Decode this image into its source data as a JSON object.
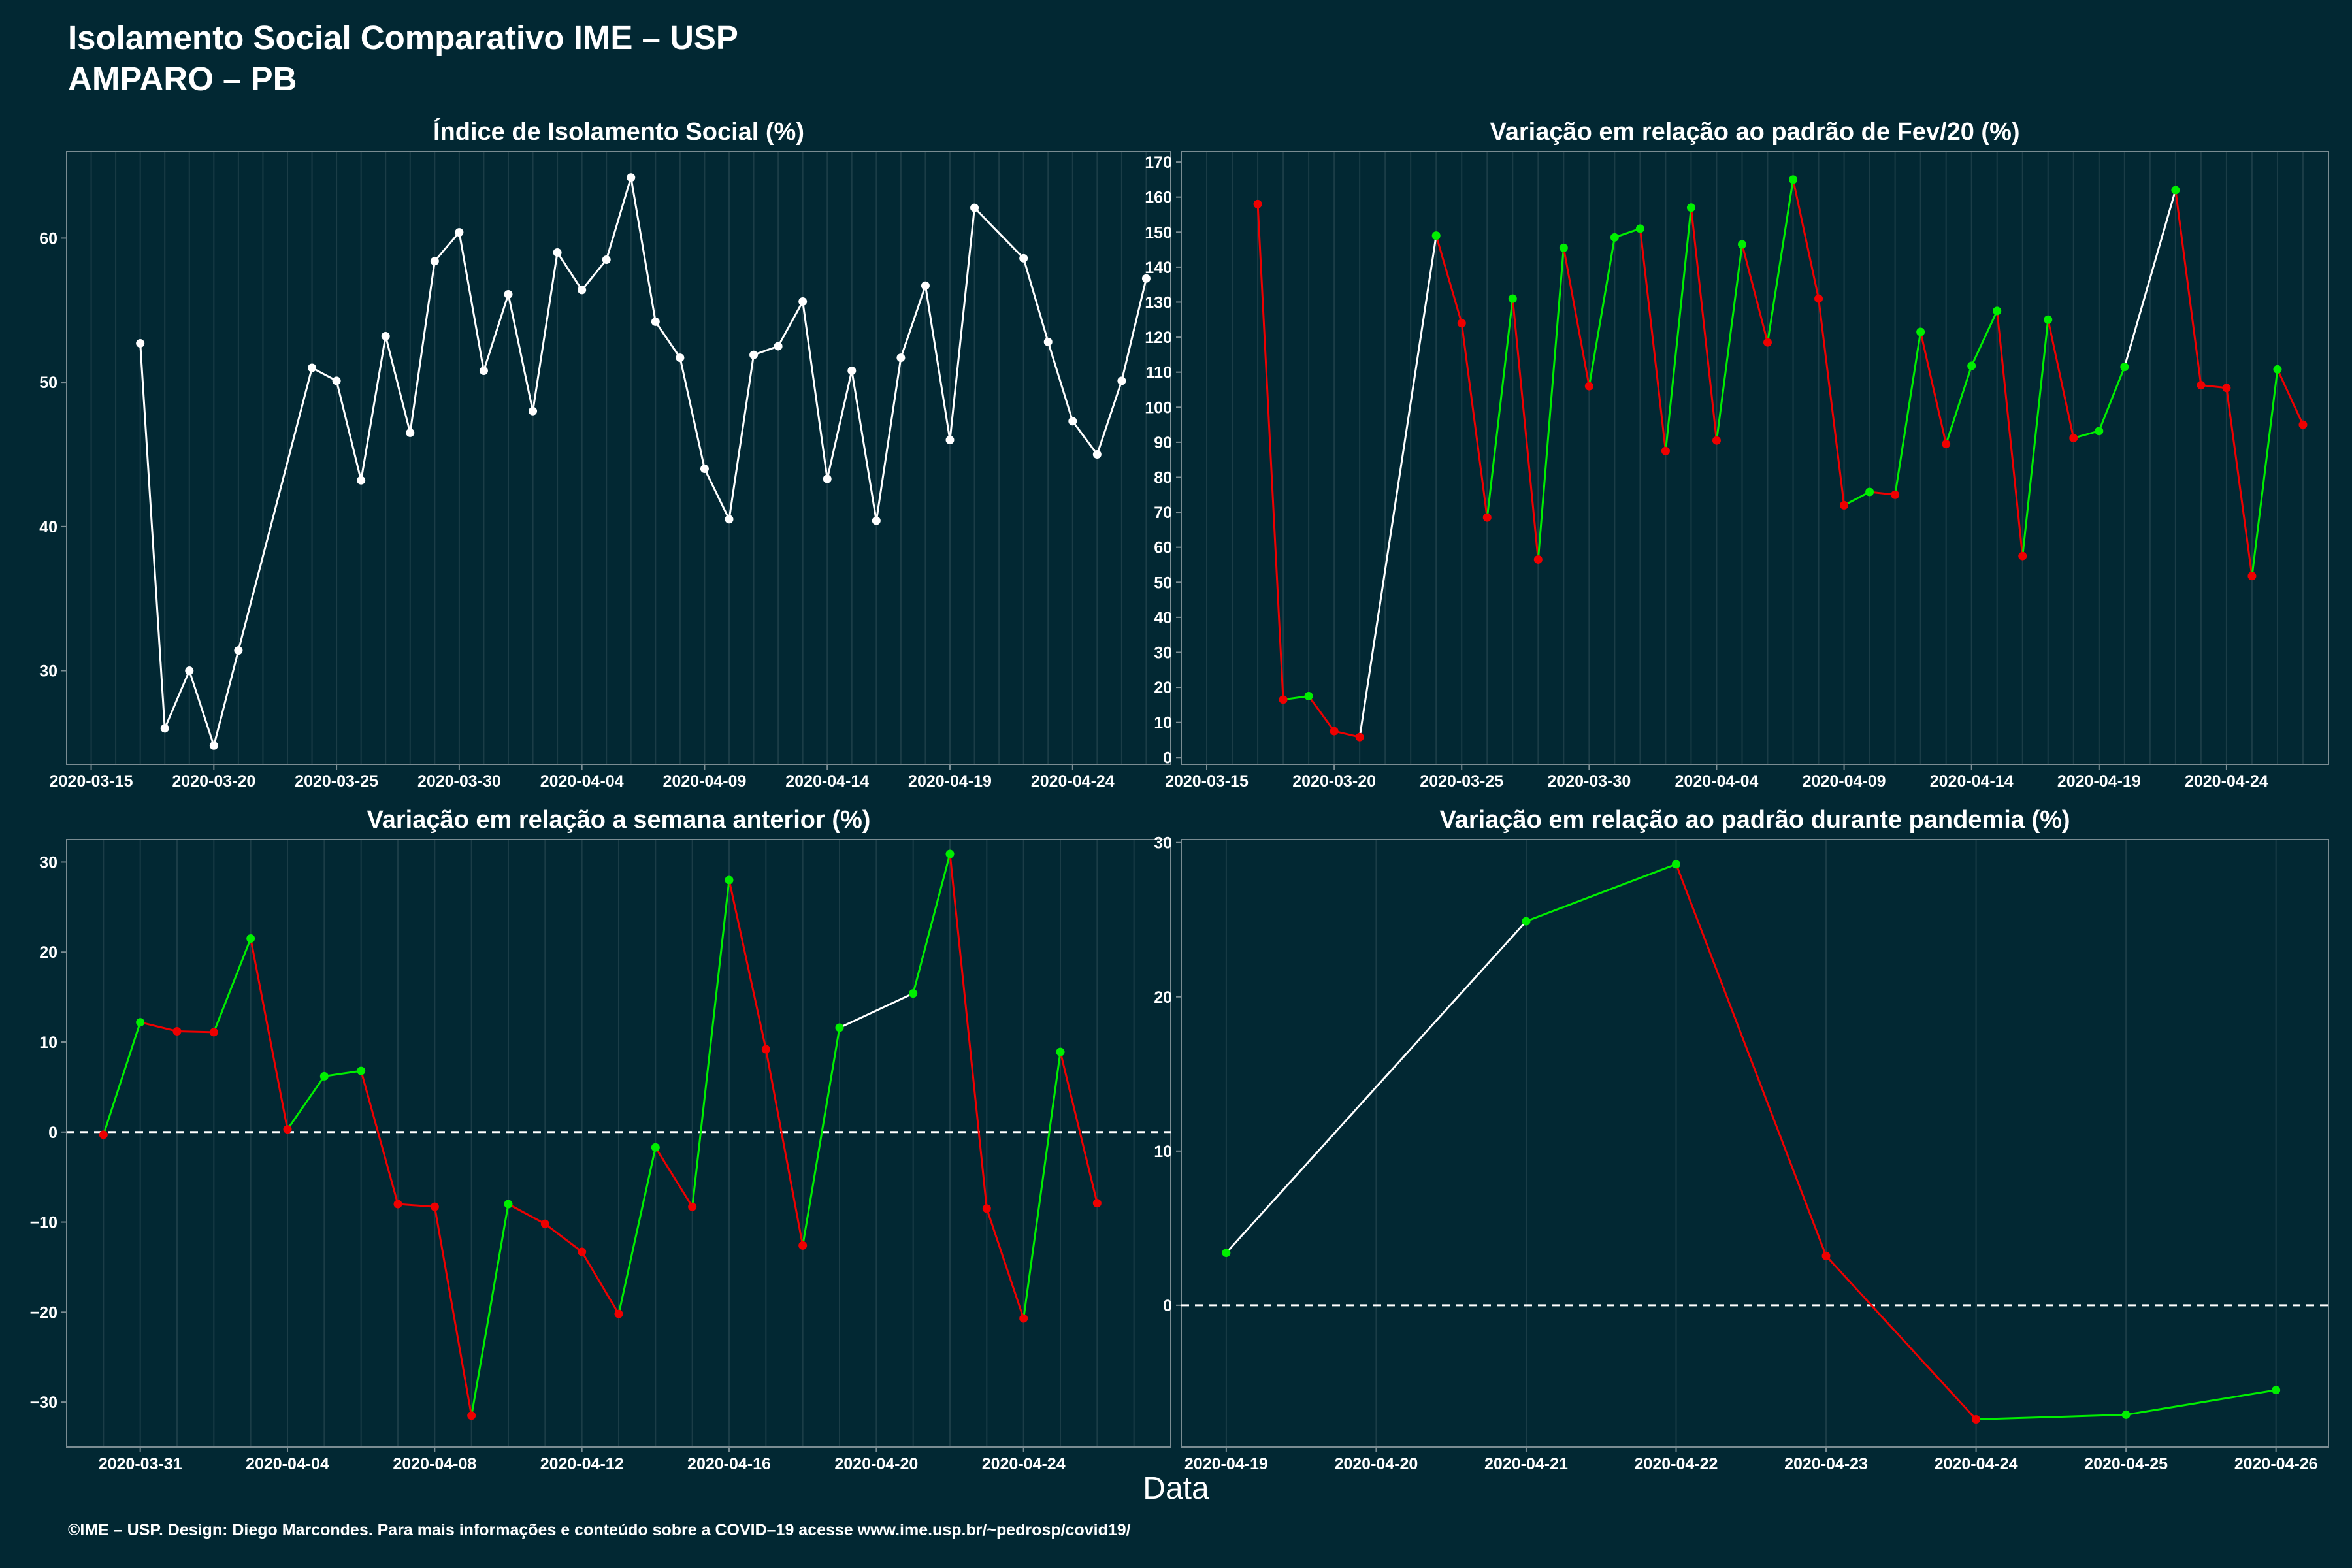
{
  "header": {
    "title": "Isolamento Social Comparativo IME – USP",
    "subtitle": "AMPARO – PB"
  },
  "x_axis_label": "Data",
  "caption": "©IME – USP. Design: Diego Marcondes. Para mais informações e conteúdo sobre a COVID–19 acesse www.ime.usp.br/~pedrosp/covid19/",
  "colors": {
    "background": "#022833",
    "panel_border": "#7a8c92",
    "grid": "#1b3d47",
    "neutral_line": "#ffffff",
    "increase": "#00ee00",
    "decrease": "#ee0000"
  },
  "chart_data": [
    {
      "id": "panel1",
      "type": "line",
      "title": "Índice de Isolamento Social (%)",
      "x_type": "date",
      "xlim": [
        "2020-03-14",
        "2020-04-28"
      ],
      "x_ticks": [
        "2020-03-15",
        "2020-03-20",
        "2020-03-25",
        "2020-03-30",
        "2020-04-04",
        "2020-04-09",
        "2020-04-14",
        "2020-04-19",
        "2020-04-24"
      ],
      "ylim": [
        23.5,
        66
      ],
      "y_ticks": [
        30,
        40,
        50,
        60
      ],
      "y_tick_labels": [
        "30",
        "40",
        "50",
        "60"
      ],
      "color_mode": "white",
      "points": [
        {
          "x": "2020-03-17",
          "y": 52.7
        },
        {
          "x": "2020-03-18",
          "y": 26.0
        },
        {
          "x": "2020-03-19",
          "y": 30.0
        },
        {
          "x": "2020-03-20",
          "y": 24.8
        },
        {
          "x": "2020-03-21",
          "y": 31.4
        },
        {
          "x": "2020-03-24",
          "y": 51.0
        },
        {
          "x": "2020-03-25",
          "y": 50.1
        },
        {
          "x": "2020-03-26",
          "y": 43.2
        },
        {
          "x": "2020-03-27",
          "y": 53.2
        },
        {
          "x": "2020-03-28",
          "y": 46.5
        },
        {
          "x": "2020-03-29",
          "y": 58.4
        },
        {
          "x": "2020-03-30",
          "y": 60.4
        },
        {
          "x": "2020-03-31",
          "y": 50.8
        },
        {
          "x": "2020-04-01",
          "y": 56.1
        },
        {
          "x": "2020-04-02",
          "y": 48.0
        },
        {
          "x": "2020-04-03",
          "y": 59.0
        },
        {
          "x": "2020-04-04",
          "y": 56.4
        },
        {
          "x": "2020-04-05",
          "y": 58.5
        },
        {
          "x": "2020-04-06",
          "y": 64.2
        },
        {
          "x": "2020-04-07",
          "y": 54.2
        },
        {
          "x": "2020-04-08",
          "y": 51.7
        },
        {
          "x": "2020-04-09",
          "y": 44.0
        },
        {
          "x": "2020-04-10",
          "y": 40.5
        },
        {
          "x": "2020-04-11",
          "y": 51.9
        },
        {
          "x": "2020-04-12",
          "y": 52.5
        },
        {
          "x": "2020-04-13",
          "y": 55.6
        },
        {
          "x": "2020-04-14",
          "y": 43.3
        },
        {
          "x": "2020-04-15",
          "y": 50.8
        },
        {
          "x": "2020-04-16",
          "y": 40.4
        },
        {
          "x": "2020-04-17",
          "y": 51.7
        },
        {
          "x": "2020-04-18",
          "y": 56.7
        },
        {
          "x": "2020-04-19",
          "y": 46.0
        },
        {
          "x": "2020-04-20",
          "y": 62.1
        },
        {
          "x": "2020-04-22",
          "y": 58.6
        },
        {
          "x": "2020-04-23",
          "y": 52.8
        },
        {
          "x": "2020-04-24",
          "y": 47.3
        },
        {
          "x": "2020-04-25",
          "y": 45.0
        },
        {
          "x": "2020-04-26",
          "y": 50.1
        },
        {
          "x": "2020-04-27",
          "y": 57.2
        }
      ]
    },
    {
      "id": "panel2",
      "type": "line",
      "title": "Variação em relação ao padrão de Fev/20 (%)",
      "x_type": "date",
      "xlim": [
        "2020-03-14",
        "2020-04-28"
      ],
      "x_ticks": [
        "2020-03-15",
        "2020-03-20",
        "2020-03-25",
        "2020-03-30",
        "2020-04-04",
        "2020-04-09",
        "2020-04-14",
        "2020-04-19",
        "2020-04-24"
      ],
      "ylim": [
        -2,
        173
      ],
      "y_ticks": [
        0,
        10,
        20,
        30,
        40,
        50,
        60,
        70,
        80,
        90,
        100,
        110,
        120,
        130,
        140,
        150,
        160,
        170
      ],
      "y_tick_labels": [
        "0",
        "10",
        "20",
        "30",
        "40",
        "50",
        "60",
        "70",
        "80",
        "90",
        "100",
        "110",
        "120",
        "130",
        "140",
        "150",
        "160",
        "170"
      ],
      "color_mode": "consecutive",
      "points": [
        {
          "x": "2020-03-17",
          "y": 158
        },
        {
          "x": "2020-03-18",
          "y": 16.5
        },
        {
          "x": "2020-03-19",
          "y": 17.5
        },
        {
          "x": "2020-03-20",
          "y": 7.5
        },
        {
          "x": "2020-03-21",
          "y": 5.8
        },
        {
          "x": "2020-03-24",
          "y": 149
        },
        {
          "x": "2020-03-25",
          "y": 124
        },
        {
          "x": "2020-03-26",
          "y": 68.5
        },
        {
          "x": "2020-03-27",
          "y": 131
        },
        {
          "x": "2020-03-28",
          "y": 56.5
        },
        {
          "x": "2020-03-29",
          "y": 145.5
        },
        {
          "x": "2020-03-30",
          "y": 106
        },
        {
          "x": "2020-03-31",
          "y": 148.5
        },
        {
          "x": "2020-04-01",
          "y": 151
        },
        {
          "x": "2020-04-02",
          "y": 87.5
        },
        {
          "x": "2020-04-03",
          "y": 157
        },
        {
          "x": "2020-04-04",
          "y": 90.5
        },
        {
          "x": "2020-04-05",
          "y": 146.5
        },
        {
          "x": "2020-04-06",
          "y": 118.5
        },
        {
          "x": "2020-04-07",
          "y": 165
        },
        {
          "x": "2020-04-08",
          "y": 131
        },
        {
          "x": "2020-04-09",
          "y": 72
        },
        {
          "x": "2020-04-10",
          "y": 75.8
        },
        {
          "x": "2020-04-11",
          "y": 75
        },
        {
          "x": "2020-04-12",
          "y": 121.5
        },
        {
          "x": "2020-04-13",
          "y": 89.5
        },
        {
          "x": "2020-04-14",
          "y": 111.8
        },
        {
          "x": "2020-04-15",
          "y": 127.5
        },
        {
          "x": "2020-04-16",
          "y": 57.5
        },
        {
          "x": "2020-04-17",
          "y": 125
        },
        {
          "x": "2020-04-18",
          "y": 91.2
        },
        {
          "x": "2020-04-19",
          "y": 93.2
        },
        {
          "x": "2020-04-20",
          "y": 111.5
        },
        {
          "x": "2020-04-22",
          "y": 162
        },
        {
          "x": "2020-04-23",
          "y": 106.3
        },
        {
          "x": "2020-04-24",
          "y": 105.5
        },
        {
          "x": "2020-04-25",
          "y": 51.8
        },
        {
          "x": "2020-04-26",
          "y": 110.8
        },
        {
          "x": "2020-04-27",
          "y": 95
        }
      ]
    },
    {
      "id": "panel3",
      "type": "line",
      "title": "Variação em relação a semana anterior (%)",
      "x_type": "date",
      "xlim": [
        "2020-03-29",
        "2020-04-28"
      ],
      "x_ticks": [
        "2020-03-31",
        "2020-04-04",
        "2020-04-08",
        "2020-04-12",
        "2020-04-16",
        "2020-04-20",
        "2020-04-24"
      ],
      "ylim": [
        -35,
        32.5
      ],
      "y_ticks": [
        -30,
        -20,
        -10,
        0,
        10,
        20,
        30
      ],
      "y_tick_labels": [
        "−30",
        "−20",
        "−10",
        "0",
        "10",
        "20",
        "30"
      ],
      "zero_line": true,
      "color_mode": "consecutive",
      "points": [
        {
          "x": "2020-03-30",
          "y": -0.3
        },
        {
          "x": "2020-03-31",
          "y": 12.2
        },
        {
          "x": "2020-04-01",
          "y": 11.2
        },
        {
          "x": "2020-04-02",
          "y": 11.1
        },
        {
          "x": "2020-04-03",
          "y": 21.5
        },
        {
          "x": "2020-04-04",
          "y": 0.3
        },
        {
          "x": "2020-04-05",
          "y": 6.2
        },
        {
          "x": "2020-04-06",
          "y": 6.8
        },
        {
          "x": "2020-04-07",
          "y": -8.0
        },
        {
          "x": "2020-04-08",
          "y": -8.3
        },
        {
          "x": "2020-04-09",
          "y": -31.5
        },
        {
          "x": "2020-04-10",
          "y": -8.0
        },
        {
          "x": "2020-04-11",
          "y": -10.2
        },
        {
          "x": "2020-04-12",
          "y": -13.3
        },
        {
          "x": "2020-04-13",
          "y": -20.2
        },
        {
          "x": "2020-04-14",
          "y": -1.7
        },
        {
          "x": "2020-04-15",
          "y": -8.3
        },
        {
          "x": "2020-04-16",
          "y": 28.0
        },
        {
          "x": "2020-04-17",
          "y": 9.2
        },
        {
          "x": "2020-04-18",
          "y": -12.6
        },
        {
          "x": "2020-04-19",
          "y": 11.6
        },
        {
          "x": "2020-04-21",
          "y": 15.4
        },
        {
          "x": "2020-04-22",
          "y": 30.9
        },
        {
          "x": "2020-04-23",
          "y": -8.5
        },
        {
          "x": "2020-04-24",
          "y": -20.7
        },
        {
          "x": "2020-04-25",
          "y": 8.9
        },
        {
          "x": "2020-04-26",
          "y": -7.9
        }
      ]
    },
    {
      "id": "panel4",
      "type": "line",
      "title": "Variação em relação ao padrão durante pandemia (%)",
      "x_type": "date",
      "xlim": [
        "2020-04-18.7",
        "2020-04-26.35"
      ],
      "x_ticks": [
        "2020-04-19",
        "2020-04-20",
        "2020-04-21",
        "2020-04-22",
        "2020-04-23",
        "2020-04-24",
        "2020-04-25",
        "2020-04-26"
      ],
      "ylim": [
        -9.2,
        30.2
      ],
      "y_ticks": [
        0,
        10,
        20,
        30
      ],
      "y_tick_labels": [
        "0",
        "10",
        "20",
        "30"
      ],
      "zero_line": true,
      "color_mode": "consecutive",
      "points": [
        {
          "x": "2020-04-19",
          "y": 3.4
        },
        {
          "x": "2020-04-21",
          "y": 24.9
        },
        {
          "x": "2020-04-22",
          "y": 28.6
        },
        {
          "x": "2020-04-23",
          "y": 3.2
        },
        {
          "x": "2020-04-24",
          "y": -7.4
        },
        {
          "x": "2020-04-25",
          "y": -7.1
        },
        {
          "x": "2020-04-26",
          "y": -5.5
        }
      ]
    }
  ]
}
